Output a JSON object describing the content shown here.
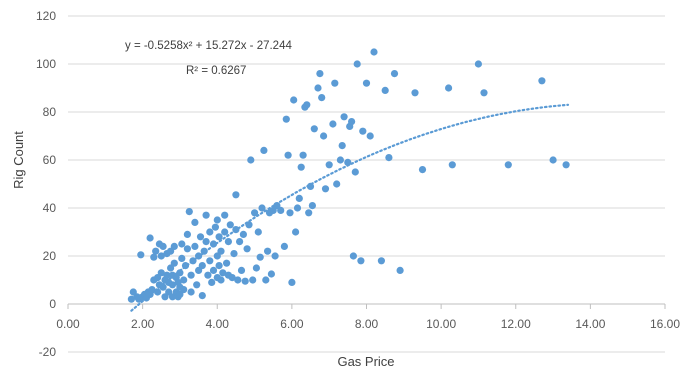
{
  "chart_data": {
    "type": "scatter",
    "xlabel": "Gas Price",
    "ylabel": "Rig Count",
    "xlim": [
      0,
      16
    ],
    "ylim": [
      -20,
      120
    ],
    "x_ticks": [
      "0.00",
      "2.00",
      "4.00",
      "6.00",
      "8.00",
      "10.00",
      "12.00",
      "14.00",
      "16.00"
    ],
    "y_ticks": [
      "-20",
      "0",
      "20",
      "40",
      "60",
      "80",
      "100",
      "120"
    ],
    "grid": "horizontal",
    "marker_color": "#5B9BD5",
    "trendline": {
      "type": "polynomial",
      "coefficients": [
        -27.244,
        15.272,
        -0.5258
      ],
      "x_range": [
        1.7,
        13.4
      ],
      "color": "#5B9BD5",
      "style": "dotted",
      "equation_line1": "y = -0.5258x² + 15.272x - 27.244",
      "equation_line2": "R² = 0.6267"
    },
    "points": [
      [
        1.7,
        2
      ],
      [
        1.75,
        5
      ],
      [
        1.85,
        3
      ],
      [
        1.9,
        2
      ],
      [
        1.95,
        20.5
      ],
      [
        2.0,
        3
      ],
      [
        2.05,
        4
      ],
      [
        2.1,
        2.5
      ],
      [
        2.15,
        5
      ],
      [
        2.2,
        4
      ],
      [
        2.2,
        27.5
      ],
      [
        2.25,
        6
      ],
      [
        2.3,
        10
      ],
      [
        2.3,
        19.5
      ],
      [
        2.35,
        22
      ],
      [
        2.4,
        5
      ],
      [
        2.4,
        11
      ],
      [
        2.45,
        8
      ],
      [
        2.45,
        25
      ],
      [
        2.5,
        13
      ],
      [
        2.5,
        20
      ],
      [
        2.55,
        7
      ],
      [
        2.55,
        24
      ],
      [
        2.6,
        3
      ],
      [
        2.6,
        10
      ],
      [
        2.65,
        12
      ],
      [
        2.65,
        21
      ],
      [
        2.7,
        5
      ],
      [
        2.7,
        9
      ],
      [
        2.75,
        15
      ],
      [
        2.75,
        22
      ],
      [
        2.8,
        3
      ],
      [
        2.8,
        8
      ],
      [
        2.8,
        12
      ],
      [
        2.85,
        17
      ],
      [
        2.85,
        24
      ],
      [
        2.9,
        5
      ],
      [
        2.9,
        11
      ],
      [
        2.95,
        3
      ],
      [
        2.95,
        9
      ],
      [
        3.0,
        4
      ],
      [
        3.0,
        7
      ],
      [
        3.0,
        13
      ],
      [
        3.05,
        19
      ],
      [
        3.05,
        25
      ],
      [
        3.1,
        6
      ],
      [
        3.1,
        10
      ],
      [
        3.15,
        16
      ],
      [
        3.2,
        23
      ],
      [
        3.2,
        29
      ],
      [
        3.25,
        38.5
      ],
      [
        3.3,
        5
      ],
      [
        3.3,
        12
      ],
      [
        3.35,
        18
      ],
      [
        3.4,
        24
      ],
      [
        3.4,
        34
      ],
      [
        3.45,
        8
      ],
      [
        3.5,
        14
      ],
      [
        3.5,
        20
      ],
      [
        3.55,
        28
      ],
      [
        3.6,
        3.5
      ],
      [
        3.6,
        16
      ],
      [
        3.65,
        22
      ],
      [
        3.7,
        26
      ],
      [
        3.7,
        37
      ],
      [
        3.75,
        12
      ],
      [
        3.8,
        18
      ],
      [
        3.8,
        30
      ],
      [
        3.85,
        9
      ],
      [
        3.9,
        14
      ],
      [
        3.9,
        25
      ],
      [
        3.95,
        32
      ],
      [
        4.0,
        11
      ],
      [
        4.0,
        20
      ],
      [
        4.0,
        35
      ],
      [
        4.05,
        16
      ],
      [
        4.05,
        28
      ],
      [
        4.1,
        10
      ],
      [
        4.1,
        22
      ],
      [
        4.15,
        13
      ],
      [
        4.2,
        30
      ],
      [
        4.2,
        37
      ],
      [
        4.25,
        17
      ],
      [
        4.3,
        12
      ],
      [
        4.3,
        26
      ],
      [
        4.35,
        33
      ],
      [
        4.4,
        11
      ],
      [
        4.45,
        21
      ],
      [
        4.5,
        31
      ],
      [
        4.5,
        45.5
      ],
      [
        4.55,
        10
      ],
      [
        4.6,
        26
      ],
      [
        4.65,
        14
      ],
      [
        4.7,
        29
      ],
      [
        4.75,
        9.5
      ],
      [
        4.8,
        23
      ],
      [
        4.85,
        33
      ],
      [
        4.9,
        60
      ],
      [
        4.95,
        10
      ],
      [
        5.0,
        38
      ],
      [
        5.05,
        15
      ],
      [
        5.1,
        30
      ],
      [
        5.15,
        19.5
      ],
      [
        5.2,
        40
      ],
      [
        5.25,
        64
      ],
      [
        5.3,
        10
      ],
      [
        5.35,
        22
      ],
      [
        5.4,
        38
      ],
      [
        5.45,
        12.5
      ],
      [
        5.5,
        39
      ],
      [
        5.55,
        20
      ],
      [
        5.6,
        41
      ],
      [
        5.7,
        39
      ],
      [
        5.8,
        24
      ],
      [
        5.85,
        77
      ],
      [
        5.9,
        62
      ],
      [
        5.95,
        38
      ],
      [
        6.0,
        9
      ],
      [
        6.05,
        85
      ],
      [
        6.1,
        30
      ],
      [
        6.15,
        40
      ],
      [
        6.2,
        44
      ],
      [
        6.25,
        57
      ],
      [
        6.3,
        62
      ],
      [
        6.35,
        82
      ],
      [
        6.4,
        83
      ],
      [
        6.45,
        38
      ],
      [
        6.5,
        49
      ],
      [
        6.55,
        41
      ],
      [
        6.6,
        73
      ],
      [
        6.7,
        90
      ],
      [
        6.75,
        96
      ],
      [
        6.8,
        86
      ],
      [
        6.85,
        70
      ],
      [
        6.9,
        48
      ],
      [
        7.0,
        58
      ],
      [
        7.1,
        75
      ],
      [
        7.15,
        92
      ],
      [
        7.2,
        50
      ],
      [
        7.3,
        60
      ],
      [
        7.35,
        66
      ],
      [
        7.4,
        78
      ],
      [
        7.5,
        59
      ],
      [
        7.55,
        74
      ],
      [
        7.6,
        76
      ],
      [
        7.65,
        20
      ],
      [
        7.7,
        55
      ],
      [
        7.75,
        100
      ],
      [
        7.85,
        18
      ],
      [
        7.9,
        72
      ],
      [
        8.0,
        92
      ],
      [
        8.1,
        70
      ],
      [
        8.2,
        105
      ],
      [
        8.4,
        18
      ],
      [
        8.5,
        89
      ],
      [
        8.6,
        61
      ],
      [
        8.75,
        96
      ],
      [
        8.9,
        14
      ],
      [
        9.3,
        88
      ],
      [
        9.5,
        56
      ],
      [
        10.2,
        90
      ],
      [
        10.3,
        58
      ],
      [
        11.0,
        100
      ],
      [
        11.15,
        88
      ],
      [
        11.8,
        58
      ],
      [
        12.7,
        93
      ],
      [
        13.0,
        60
      ],
      [
        13.35,
        58
      ]
    ]
  }
}
